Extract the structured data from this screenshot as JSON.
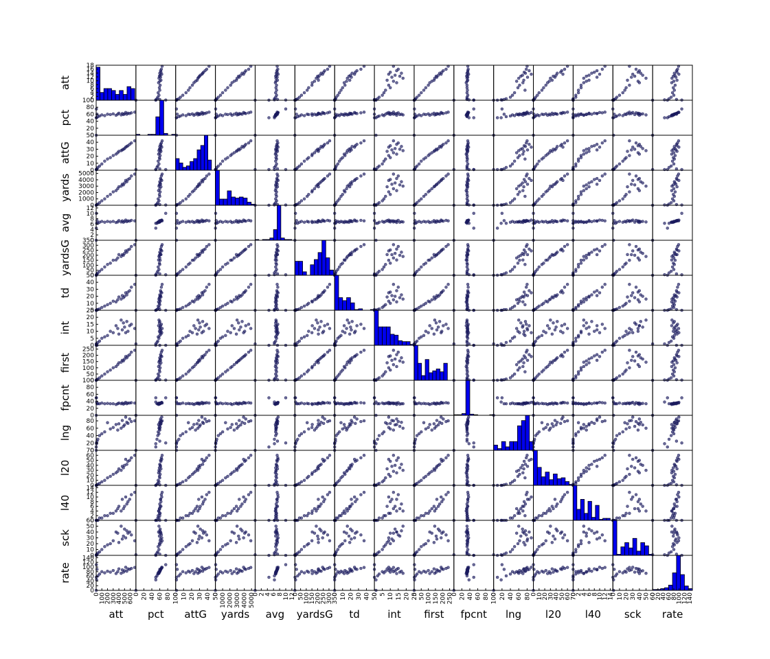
{
  "chart_data": {
    "type": "scatter_matrix",
    "point_color": "#1a1a5e",
    "hist_color": "#0000ee",
    "diag_ylim": [
      0,
      18
    ],
    "diag_yticks": [
      0,
      2,
      4,
      6,
      8,
      10,
      12,
      14,
      16,
      18
    ],
    "variables": [
      {
        "name": "att",
        "lim": [
          0,
          700
        ],
        "ticks": [
          0,
          100,
          200,
          300,
          400,
          500,
          600
        ],
        "values": [
          680,
          620,
          590,
          560,
          540,
          520,
          500,
          480,
          460,
          440,
          400,
          380,
          350,
          300,
          250,
          200,
          150,
          100,
          60,
          30,
          15,
          8,
          4,
          2,
          1
        ],
        "hist": {
          "bins": [
            0,
            68,
            136,
            204,
            272,
            340,
            408,
            476,
            544,
            612,
            680
          ],
          "counts": [
            17,
            4,
            6,
            6,
            5,
            3,
            5,
            3,
            7,
            6
          ]
        }
      },
      {
        "name": "pct",
        "lim": [
          0,
          100
        ],
        "ticks": [
          0,
          20,
          40,
          60,
          80,
          100
        ],
        "values": [
          66,
          64,
          62,
          63,
          60,
          65,
          61,
          59,
          62,
          58,
          63,
          60,
          57,
          61,
          59,
          60,
          56,
          58,
          55,
          53,
          60,
          50,
          75,
          50,
          0
        ],
        "hist": {
          "bins": [
            0,
            10,
            20,
            30,
            40,
            50,
            60,
            70,
            80,
            90,
            100
          ],
          "counts": [
            1,
            0,
            0,
            1,
            1,
            20,
            38,
            2,
            0,
            1
          ]
        }
      },
      {
        "name": "attG",
        "lim": [
          0,
          50
        ],
        "ticks": [
          0,
          10,
          20,
          30,
          40,
          50
        ],
        "values": [
          42,
          39,
          37,
          35,
          34,
          33,
          31,
          30,
          29,
          28,
          27,
          25,
          23,
          21,
          18,
          16,
          13,
          9,
          6,
          4,
          2,
          1,
          1,
          1,
          1
        ],
        "hist": {
          "bins": [
            0,
            4.5,
            9,
            13.5,
            18,
            22.5,
            27,
            31.5,
            36,
            40.5,
            45
          ],
          "counts": [
            8,
            5,
            2,
            3,
            6,
            8,
            14,
            17,
            24,
            7
          ]
        }
      },
      {
        "name": "yards",
        "lim": [
          0,
          5500
        ],
        "ticks": [
          0,
          1000,
          2000,
          3000,
          4000,
          5000
        ],
        "values": [
          4900,
          4600,
          4200,
          4050,
          3700,
          3900,
          3500,
          3200,
          3300,
          3000,
          2900,
          2600,
          2300,
          2100,
          1700,
          1400,
          1000,
          700,
          400,
          190,
          110,
          50,
          40,
          9,
          0
        ],
        "hist": {
          "bins": [
            0,
            550,
            1100,
            1650,
            2200,
            2750,
            3300,
            3850,
            4400,
            4950,
            5500
          ],
          "counts": [
            34,
            6,
            6,
            14,
            8,
            7,
            8,
            7,
            3,
            1
          ]
        }
      },
      {
        "name": "avg",
        "lim": [
          0,
          13
        ],
        "ticks": [
          0,
          2,
          4,
          6,
          8,
          10,
          12
        ],
        "values": [
          7.2,
          7.4,
          7.1,
          7.2,
          6.9,
          7.5,
          7.0,
          6.7,
          7.2,
          6.8,
          7.3,
          6.8,
          6.6,
          7.0,
          6.8,
          7.0,
          6.7,
          7.0,
          6.7,
          6.3,
          7.3,
          6.3,
          10.0,
          4.5,
          0
        ],
        "hist": {
          "bins": [
            0,
            1.2,
            2.4,
            3.6,
            4.8,
            6,
            7.2,
            8.4,
            9.6,
            10.8,
            12
          ],
          "counts": [
            1,
            0,
            1,
            1,
            3,
            14,
            46,
            3,
            1,
            1
          ]
        }
      },
      {
        "name": "yardsG",
        "lim": [
          0,
          350
        ],
        "ticks": [
          0,
          50,
          100,
          150,
          200,
          250,
          300,
          350
        ],
        "values": [
          306,
          288,
          262,
          253,
          231,
          244,
          219,
          200,
          206,
          188,
          207,
          173,
          153,
          150,
          121,
          108,
          83,
          58,
          40,
          24,
          14,
          6,
          5,
          1,
          0
        ],
        "hist": {
          "bins": [
            0,
            34,
            68,
            102,
            136,
            170,
            204,
            238,
            272,
            306,
            340
          ],
          "counts": [
            8,
            8,
            2,
            0,
            6,
            9,
            13,
            20,
            10,
            3
          ]
        }
      },
      {
        "name": "td",
        "lim": [
          0,
          50
        ],
        "ticks": [
          0,
          10,
          20,
          30,
          40,
          50
        ],
        "values": [
          37,
          33,
          28,
          26,
          22,
          25,
          20,
          18,
          21,
          16,
          19,
          15,
          12,
          13,
          10,
          8,
          6,
          4,
          2,
          1,
          1,
          0,
          0,
          0,
          0
        ],
        "hist": {
          "bins": [
            0,
            5,
            10,
            15,
            20,
            25,
            30,
            35,
            40,
            45,
            50
          ],
          "counts": [
            47,
            17,
            13,
            17,
            10,
            1,
            2,
            0,
            0,
            1
          ]
        }
      },
      {
        "name": "int",
        "lim": [
          0,
          25
        ],
        "ticks": [
          0,
          5,
          10,
          15,
          20,
          25
        ],
        "values": [
          12,
          15,
          14,
          10,
          17,
          9,
          13,
          16,
          11,
          18,
          8,
          12,
          14,
          9,
          10,
          7,
          6,
          5,
          3,
          2,
          0,
          1,
          0,
          0,
          1
        ],
        "hist": {
          "bins": [
            0,
            2.5,
            5,
            7.5,
            10,
            12.5,
            15,
            17.5,
            20,
            22.5,
            25
          ],
          "counts": [
            38,
            20,
            20,
            20,
            12,
            11,
            5,
            4,
            4,
            1
          ]
        }
      },
      {
        "name": "first",
        "lim": [
          0,
          280
        ],
        "ticks": [
          0,
          50,
          100,
          150,
          200,
          250
        ],
        "values": [
          240,
          225,
          205,
          195,
          180,
          190,
          170,
          155,
          160,
          145,
          140,
          125,
          110,
          100,
          82,
          68,
          50,
          35,
          20,
          10,
          5,
          3,
          2,
          1,
          0
        ],
        "hist": {
          "bins": [
            0,
            26,
            52,
            78,
            104,
            130,
            156,
            182,
            208,
            234,
            260
          ],
          "counts": [
            37,
            18,
            5,
            22,
            8,
            10,
            12,
            9,
            18,
            0
          ]
        }
      },
      {
        "name": "fpcnt",
        "lim": [
          0,
          100
        ],
        "ticks": [
          0,
          20,
          40,
          60,
          80,
          100
        ],
        "values": [
          35,
          36,
          35,
          35,
          33,
          37,
          34,
          32,
          35,
          33,
          35,
          33,
          31,
          33,
          33,
          34,
          33,
          35,
          33,
          33,
          33,
          38,
          50,
          50,
          0
        ],
        "hist": {
          "bins": [
            0,
            10,
            20,
            30,
            40,
            50,
            60,
            70,
            80,
            90,
            100
          ],
          "counts": [
            1,
            1,
            3,
            60,
            2,
            1,
            0,
            0,
            0,
            1
          ]
        }
      },
      {
        "name": "lng",
        "lim": [
          0,
          95
        ],
        "ticks": [
          0,
          20,
          40,
          60,
          80
        ],
        "values": [
          80,
          78,
          85,
          73,
          76,
          90,
          69,
          65,
          81,
          60,
          72,
          55,
          70,
          62,
          58,
          75,
          50,
          45,
          40,
          30,
          25,
          18,
          20,
          9,
          0
        ],
        "hist": {
          "bins": [
            0,
            9.5,
            19,
            28.5,
            38,
            47.5,
            57,
            66.5,
            76,
            85.5,
            95
          ],
          "counts": [
            3,
            1,
            5,
            2,
            5,
            5,
            14,
            17,
            20,
            5
          ]
        }
      },
      {
        "name": "l20",
        "lim": [
          0,
          70
        ],
        "ticks": [
          0,
          10,
          20,
          30,
          40,
          50,
          60,
          70
        ],
        "values": [
          60,
          55,
          50,
          48,
          42,
          52,
          40,
          35,
          38,
          30,
          33,
          28,
          25,
          22,
          18,
          15,
          10,
          7,
          4,
          2,
          1,
          0,
          0,
          0,
          0
        ],
        "hist": {
          "bins": [
            0,
            7,
            14,
            21,
            28,
            35,
            42,
            49,
            56,
            63,
            70
          ],
          "counts": [
            37,
            19,
            9,
            14,
            6,
            12,
            7,
            8,
            4,
            1
          ]
        }
      },
      {
        "name": "l40",
        "lim": [
          0,
          15
        ],
        "ticks": [
          0,
          2,
          4,
          6,
          8,
          10,
          12,
          14
        ],
        "values": [
          12,
          11,
          9,
          8,
          7,
          10,
          6,
          5,
          9,
          4,
          6,
          5,
          4,
          3,
          3,
          2,
          2,
          1,
          1,
          0,
          0,
          0,
          0,
          0,
          0
        ],
        "hist": {
          "bins": [
            0,
            1.4,
            2.8,
            4.2,
            5.6,
            7,
            8.4,
            9.8,
            11.2,
            12.6,
            14
          ],
          "counts": [
            35,
            11,
            21,
            7,
            19,
            3,
            15,
            1,
            2,
            2
          ]
        }
      },
      {
        "name": "sck",
        "lim": [
          0,
          60
        ],
        "ticks": [
          0,
          10,
          20,
          30,
          40,
          50,
          60
        ],
        "values": [
          25,
          35,
          40,
          38,
          42,
          30,
          45,
          33,
          28,
          50,
          22,
          38,
          40,
          25,
          20,
          18,
          15,
          10,
          6,
          4,
          2,
          1,
          0,
          0,
          1
        ],
        "hist": {
          "bins": [
            0,
            6,
            12,
            18,
            24,
            30,
            36,
            42,
            48,
            54,
            60
          ],
          "counts": [
            33,
            1,
            8,
            12,
            7,
            16,
            4,
            12,
            9,
            1
          ]
        }
      },
      {
        "name": "rate",
        "lim": [
          0,
          150
        ],
        "ticks": [
          0,
          20,
          40,
          60,
          80,
          100,
          120,
          140
        ],
        "values": [
          98,
          94,
          90,
          92,
          82,
          99,
          84,
          78,
          88,
          73,
          92,
          80,
          72,
          85,
          78,
          82,
          75,
          80,
          70,
          62,
          90,
          45,
          110,
          56,
          0
        ],
        "hist": {
          "bins": [
            0,
            15,
            30,
            45,
            60,
            75,
            90,
            105,
            120,
            135,
            150
          ],
          "counts": [
            1,
            1,
            2,
            3,
            6,
            20,
            40,
            18,
            5,
            2
          ]
        }
      }
    ]
  }
}
